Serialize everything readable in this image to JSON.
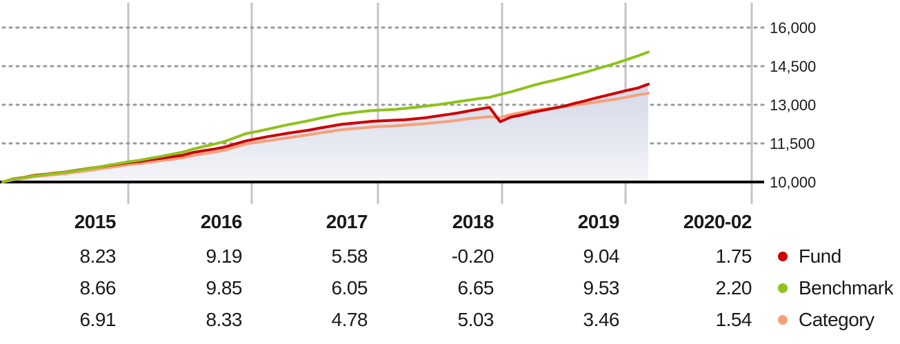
{
  "chart_data": {
    "type": "line",
    "y_axis": {
      "ticks": [
        "16,000",
        "14,500",
        "13,000",
        "11,500",
        "10,000"
      ],
      "tick_values": [
        16000,
        14500,
        13000,
        11500,
        10000
      ],
      "ylim": [
        10000,
        16000
      ],
      "position": "right",
      "grid": "dotted horizontal lines"
    },
    "years": [
      "2015",
      "2016",
      "2017",
      "2018",
      "2019",
      "2020-02"
    ],
    "x_range": [
      "2015-01",
      "2020-02"
    ],
    "series": [
      {
        "name": "Fund",
        "color": "#cc0000",
        "points": [
          [
            "2015-01",
            10000
          ],
          [
            "2015-02",
            10120
          ],
          [
            "2015-03",
            10180
          ],
          [
            "2015-04",
            10260
          ],
          [
            "2015-05",
            10300
          ],
          [
            "2015-06",
            10350
          ],
          [
            "2015-07",
            10390
          ],
          [
            "2015-08",
            10460
          ],
          [
            "2015-09",
            10520
          ],
          [
            "2015-10",
            10580
          ],
          [
            "2015-11",
            10640
          ],
          [
            "2015-12",
            10700
          ],
          [
            "2016-01",
            10760
          ],
          [
            "2016-02",
            10800
          ],
          [
            "2016-03",
            10870
          ],
          [
            "2016-04",
            10920
          ],
          [
            "2016-05",
            10980
          ],
          [
            "2016-06",
            11040
          ],
          [
            "2016-07",
            11150
          ],
          [
            "2016-08",
            11220
          ],
          [
            "2016-09",
            11280
          ],
          [
            "2016-10",
            11360
          ],
          [
            "2016-11",
            11480
          ],
          [
            "2016-12",
            11600
          ],
          [
            "2017-01",
            11680
          ],
          [
            "2017-02",
            11760
          ],
          [
            "2017-03",
            11830
          ],
          [
            "2017-04",
            11900
          ],
          [
            "2017-05",
            11960
          ],
          [
            "2017-06",
            12020
          ],
          [
            "2017-07",
            12100
          ],
          [
            "2017-08",
            12170
          ],
          [
            "2017-09",
            12240
          ],
          [
            "2017-10",
            12280
          ],
          [
            "2017-11",
            12320
          ],
          [
            "2017-12",
            12360
          ],
          [
            "2018-01",
            12380
          ],
          [
            "2018-02",
            12400
          ],
          [
            "2018-03",
            12420
          ],
          [
            "2018-04",
            12460
          ],
          [
            "2018-05",
            12500
          ],
          [
            "2018-06",
            12560
          ],
          [
            "2018-07",
            12620
          ],
          [
            "2018-08",
            12680
          ],
          [
            "2018-09",
            12760
          ],
          [
            "2018-10",
            12830
          ],
          [
            "2018-11",
            12900
          ],
          [
            "2018-12",
            12340
          ],
          [
            "2019-01",
            12520
          ],
          [
            "2019-02",
            12600
          ],
          [
            "2019-03",
            12700
          ],
          [
            "2019-04",
            12780
          ],
          [
            "2019-05",
            12860
          ],
          [
            "2019-06",
            12940
          ],
          [
            "2019-07",
            13050
          ],
          [
            "2019-08",
            13150
          ],
          [
            "2019-09",
            13260
          ],
          [
            "2019-10",
            13360
          ],
          [
            "2019-11",
            13460
          ],
          [
            "2019-12",
            13560
          ],
          [
            "2020-01",
            13650
          ],
          [
            "2020-02",
            13800
          ]
        ]
      },
      {
        "name": "Benchmark",
        "color": "#8ec21a",
        "points": [
          [
            "2015-01",
            10000
          ],
          [
            "2015-02",
            10110
          ],
          [
            "2015-03",
            10170
          ],
          [
            "2015-04",
            10240
          ],
          [
            "2015-05",
            10290
          ],
          [
            "2015-06",
            10340
          ],
          [
            "2015-07",
            10380
          ],
          [
            "2015-08",
            10450
          ],
          [
            "2015-09",
            10510
          ],
          [
            "2015-10",
            10580
          ],
          [
            "2015-11",
            10650
          ],
          [
            "2015-12",
            10720
          ],
          [
            "2016-01",
            10790
          ],
          [
            "2016-02",
            10850
          ],
          [
            "2016-03",
            10930
          ],
          [
            "2016-04",
            11000
          ],
          [
            "2016-05",
            11080
          ],
          [
            "2016-06",
            11160
          ],
          [
            "2016-07",
            11280
          ],
          [
            "2016-08",
            11380
          ],
          [
            "2016-09",
            11470
          ],
          [
            "2016-10",
            11580
          ],
          [
            "2016-11",
            11730
          ],
          [
            "2016-12",
            11880
          ],
          [
            "2017-01",
            11960
          ],
          [
            "2017-02",
            12050
          ],
          [
            "2017-03",
            12140
          ],
          [
            "2017-04",
            12230
          ],
          [
            "2017-05",
            12310
          ],
          [
            "2017-06",
            12390
          ],
          [
            "2017-07",
            12480
          ],
          [
            "2017-08",
            12560
          ],
          [
            "2017-09",
            12640
          ],
          [
            "2017-10",
            12690
          ],
          [
            "2017-11",
            12740
          ],
          [
            "2017-12",
            12780
          ],
          [
            "2018-01",
            12800
          ],
          [
            "2018-02",
            12820
          ],
          [
            "2018-03",
            12860
          ],
          [
            "2018-04",
            12900
          ],
          [
            "2018-05",
            12950
          ],
          [
            "2018-06",
            13000
          ],
          [
            "2018-07",
            13060
          ],
          [
            "2018-08",
            13120
          ],
          [
            "2018-09",
            13180
          ],
          [
            "2018-10",
            13240
          ],
          [
            "2018-11",
            13290
          ],
          [
            "2018-12",
            13400
          ],
          [
            "2019-01",
            13500
          ],
          [
            "2019-02",
            13620
          ],
          [
            "2019-03",
            13740
          ],
          [
            "2019-04",
            13850
          ],
          [
            "2019-05",
            13940
          ],
          [
            "2019-06",
            14040
          ],
          [
            "2019-07",
            14150
          ],
          [
            "2019-08",
            14260
          ],
          [
            "2019-09",
            14380
          ],
          [
            "2019-10",
            14500
          ],
          [
            "2019-11",
            14620
          ],
          [
            "2019-12",
            14760
          ],
          [
            "2020-01",
            14900
          ],
          [
            "2020-02",
            15050
          ]
        ]
      },
      {
        "name": "Category",
        "color": "#f7a07a",
        "points": [
          [
            "2015-01",
            10000
          ],
          [
            "2015-02",
            10090
          ],
          [
            "2015-03",
            10140
          ],
          [
            "2015-04",
            10210
          ],
          [
            "2015-05",
            10250
          ],
          [
            "2015-06",
            10290
          ],
          [
            "2015-07",
            10330
          ],
          [
            "2015-08",
            10390
          ],
          [
            "2015-09",
            10440
          ],
          [
            "2015-10",
            10500
          ],
          [
            "2015-11",
            10560
          ],
          [
            "2015-12",
            10620
          ],
          [
            "2016-01",
            10680
          ],
          [
            "2016-02",
            10720
          ],
          [
            "2016-03",
            10780
          ],
          [
            "2016-04",
            10830
          ],
          [
            "2016-05",
            10880
          ],
          [
            "2016-06",
            10940
          ],
          [
            "2016-07",
            11030
          ],
          [
            "2016-08",
            11100
          ],
          [
            "2016-09",
            11160
          ],
          [
            "2016-10",
            11240
          ],
          [
            "2016-11",
            11360
          ],
          [
            "2016-12",
            11480
          ],
          [
            "2017-01",
            11540
          ],
          [
            "2017-02",
            11600
          ],
          [
            "2017-03",
            11660
          ],
          [
            "2017-04",
            11720
          ],
          [
            "2017-05",
            11780
          ],
          [
            "2017-06",
            11840
          ],
          [
            "2017-07",
            11910
          ],
          [
            "2017-08",
            11970
          ],
          [
            "2017-09",
            12030
          ],
          [
            "2017-10",
            12070
          ],
          [
            "2017-11",
            12100
          ],
          [
            "2017-12",
            12140
          ],
          [
            "2018-01",
            12160
          ],
          [
            "2018-02",
            12180
          ],
          [
            "2018-03",
            12210
          ],
          [
            "2018-04",
            12240
          ],
          [
            "2018-05",
            12270
          ],
          [
            "2018-06",
            12310
          ],
          [
            "2018-07",
            12350
          ],
          [
            "2018-08",
            12400
          ],
          [
            "2018-09",
            12460
          ],
          [
            "2018-10",
            12500
          ],
          [
            "2018-11",
            12540
          ],
          [
            "2018-12",
            12500
          ],
          [
            "2019-01",
            12620
          ],
          [
            "2019-02",
            12700
          ],
          [
            "2019-03",
            12770
          ],
          [
            "2019-04",
            12830
          ],
          [
            "2019-05",
            12880
          ],
          [
            "2019-06",
            12930
          ],
          [
            "2019-07",
            12980
          ],
          [
            "2019-08",
            13040
          ],
          [
            "2019-09",
            13100
          ],
          [
            "2019-10",
            13160
          ],
          [
            "2019-11",
            13220
          ],
          [
            "2019-12",
            13300
          ],
          [
            "2020-01",
            13380
          ],
          [
            "2020-02",
            13450
          ]
        ]
      }
    ],
    "area_fill": {
      "under_series": "Fund",
      "color": "#e2e5ef"
    },
    "table": {
      "rows": [
        {
          "name": "Fund",
          "values": [
            "8.23",
            "9.19",
            "5.58",
            "-0.20",
            "9.04",
            "1.75"
          ]
        },
        {
          "name": "Benchmark",
          "values": [
            "8.66",
            "9.85",
            "6.05",
            "6.65",
            "9.53",
            "2.20"
          ]
        },
        {
          "name": "Category",
          "values": [
            "6.91",
            "8.33",
            "4.78",
            "5.03",
            "3.46",
            "1.54"
          ]
        }
      ]
    },
    "legend": "right of table",
    "title": "",
    "xlabel": "",
    "ylabel": ""
  }
}
